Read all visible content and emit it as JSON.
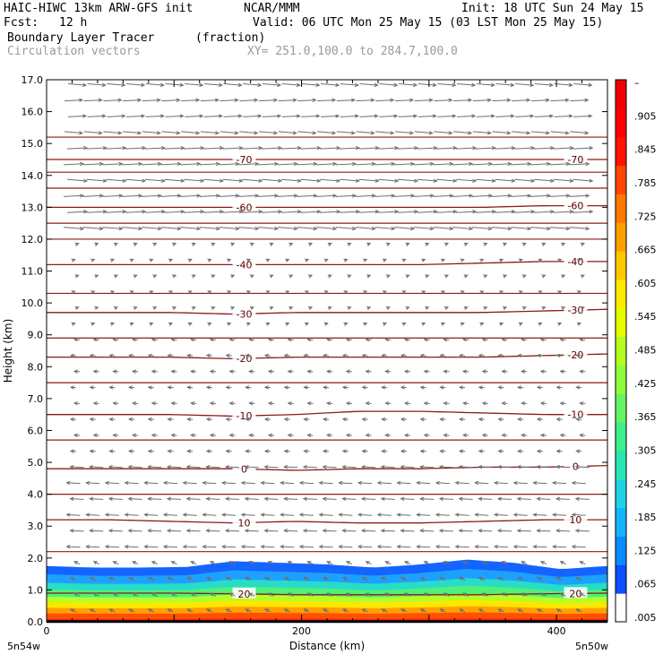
{
  "header": {
    "model_title": "HAIC-HIWC 13km ARW-GFS init",
    "org": "NCAR/MMM",
    "init": "Init: 18 UTC Sun 24 May 15",
    "fcst_label": "Fcst:",
    "fcst_value": "12 h",
    "valid": "Valid: 06 UTC Mon 25 May 15 (03 LST Mon 25 May 15)",
    "field_name": "Boundary Layer Tracer",
    "field_units": "(fraction)",
    "vector_name": "Circulation vectors",
    "xy_range": "XY= 251.0,100.0 to 284.7,100.0"
  },
  "chart_data": {
    "type": "contour",
    "xlabel": "Distance (km)",
    "ylabel": "Height (km)",
    "xlim": [
      0,
      440
    ],
    "ylim": [
      0,
      17
    ],
    "x_ticks": [
      {
        "value": 0,
        "label": "0"
      },
      {
        "value": 200,
        "label": "200"
      },
      {
        "value": 400,
        "label": "400"
      }
    ],
    "y_ticks": [
      "0.0",
      "1.0",
      "2.0",
      "3.0",
      "4.0",
      "5.0",
      "6.0",
      "7.0",
      "8.0",
      "9.0",
      "10.0",
      "11.0",
      "12.0",
      "13.0",
      "14.0",
      "15.0",
      "16.0",
      "17.0"
    ],
    "endpoint_labels": {
      "left": "5n54w",
      "right": "5n50w"
    },
    "colorbar": {
      "labels": [
        ".005",
        ".065",
        ".125",
        ".185",
        ".245",
        ".305",
        ".365",
        ".425",
        ".485",
        ".545",
        ".605",
        ".665",
        ".725",
        ".785",
        ".845",
        ".905",
        "–"
      ],
      "colors": [
        "#ffffff",
        "#0a50ff",
        "#0a8cff",
        "#14b4ff",
        "#1ed2e6",
        "#28e6b4",
        "#3cf08c",
        "#64f564",
        "#8cff3c",
        "#b4ff1e",
        "#e6ff00",
        "#ffeb00",
        "#ffc800",
        "#ffa000",
        "#ff7800",
        "#ff4600",
        "#ff1400",
        "#ff0000",
        "#f00000"
      ]
    },
    "temperature_contours": [
      {
        "label": "20",
        "heights": [
          0.9,
          0.9,
          0.9,
          0.88,
          0.85,
          0.85,
          0.85,
          0.85,
          0.88,
          0.9
        ]
      },
      {
        "label": "10",
        "heights": [
          3.2,
          3.2,
          3.15,
          3.1,
          3.15,
          3.1,
          3.1,
          3.15,
          3.2,
          3.2
        ]
      },
      {
        "label": "0",
        "heights": [
          4.8,
          4.8,
          4.8,
          4.8,
          4.75,
          4.8,
          4.8,
          4.85,
          4.85,
          4.9
        ]
      },
      {
        "label": "-10",
        "heights": [
          6.5,
          6.5,
          6.5,
          6.45,
          6.5,
          6.6,
          6.6,
          6.55,
          6.5,
          6.5
        ]
      },
      {
        "label": "-20",
        "heights": [
          8.3,
          8.3,
          8.3,
          8.25,
          8.3,
          8.3,
          8.3,
          8.3,
          8.35,
          8.4
        ]
      },
      {
        "label": "-30",
        "heights": [
          9.7,
          9.7,
          9.7,
          9.65,
          9.7,
          9.7,
          9.7,
          9.7,
          9.75,
          9.8
        ]
      },
      {
        "label": "-40",
        "heights": [
          11.2,
          11.2,
          11.2,
          11.2,
          11.2,
          11.2,
          11.2,
          11.25,
          11.3,
          11.3
        ]
      },
      {
        "label": "-60",
        "heights": [
          13.0,
          13.0,
          13.0,
          13.0,
          13.0,
          13.0,
          13.0,
          13.0,
          13.05,
          13.05
        ]
      },
      {
        "label": "-70",
        "heights": [
          14.5,
          14.5,
          14.5,
          14.5,
          14.5,
          14.5,
          14.5,
          14.5,
          14.5,
          14.5
        ]
      }
    ],
    "extra_contour_heights": [
      2.2,
      4.0,
      5.7,
      7.5,
      8.9,
      10.3,
      12.0,
      12.5,
      13.6,
      14.1,
      15.2
    ],
    "tracer_layer": {
      "top_heights": [
        1.75,
        1.7,
        1.7,
        1.72,
        1.9,
        1.85,
        1.8,
        1.7,
        1.8,
        1.95,
        1.85,
        1.65,
        1.75
      ],
      "bands": [
        {
          "top_offset": 0.0,
          "color": "#1464ff"
        },
        {
          "top_offset": 0.15,
          "color": "#1ea0ff"
        },
        {
          "top_offset": 0.3,
          "color": "#28dcc8"
        },
        {
          "top_offset": 0.42,
          "color": "#50f07a"
        },
        {
          "top_offset": 0.55,
          "color": "#b4ff28"
        },
        {
          "top_offset": 0.65,
          "color": "#ffe600"
        },
        {
          "top_offset": 0.75,
          "color": "#ffa000"
        },
        {
          "top_offset": 0.85,
          "color": "#ff5000"
        },
        {
          "top_offset": 0.95,
          "color": "#f01e1e"
        }
      ]
    },
    "vectors": {
      "upper_u": 1.0,
      "lower_u": -0.7
    }
  }
}
